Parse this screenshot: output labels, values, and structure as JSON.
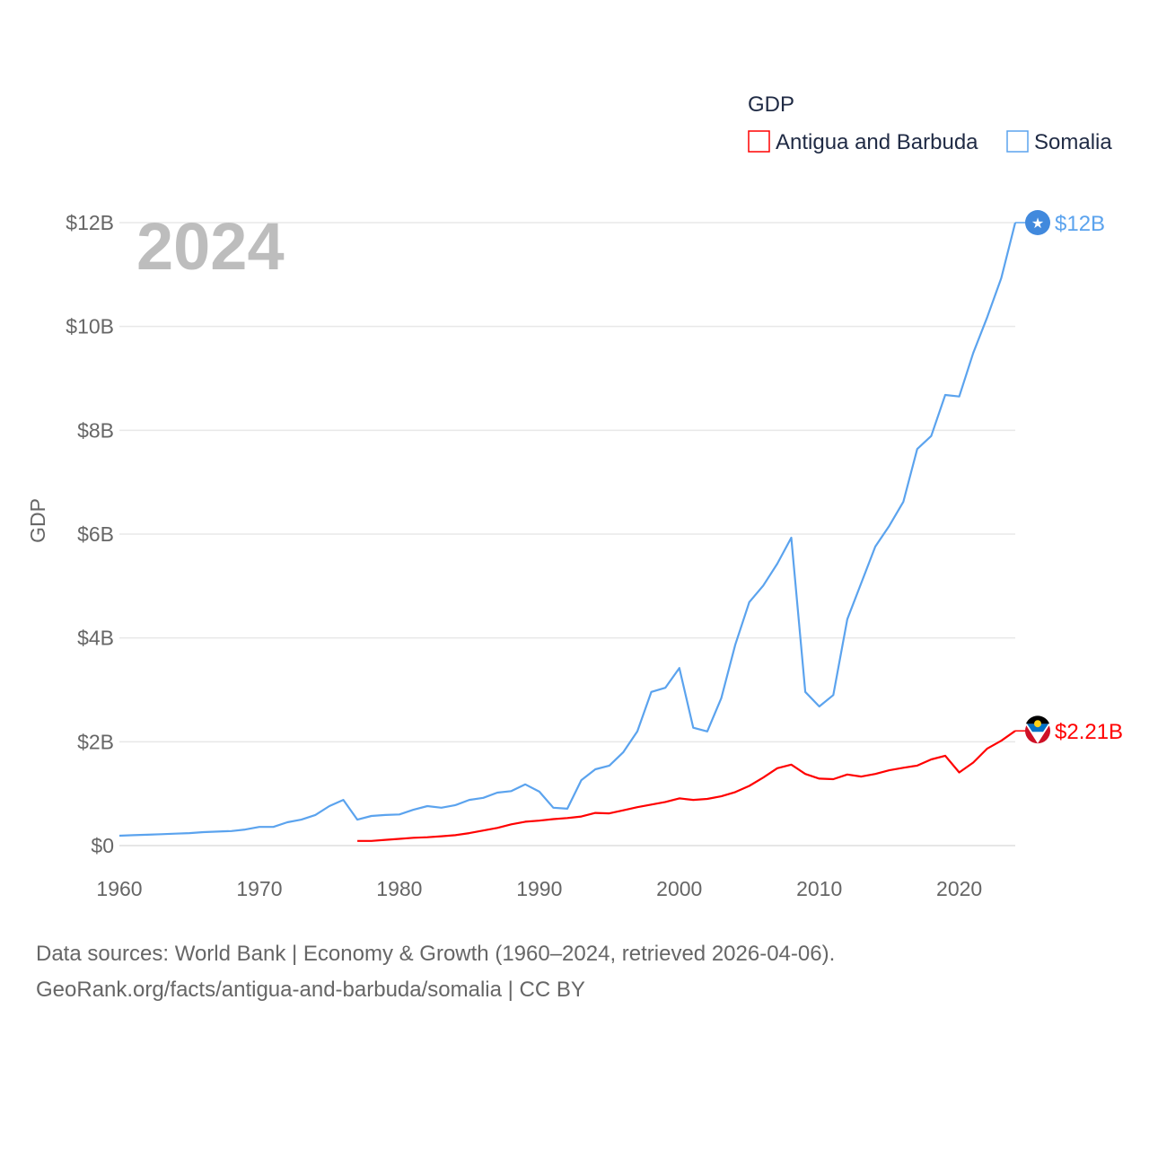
{
  "chart_data": {
    "type": "line",
    "title": "GDP",
    "year_label": "2024",
    "ylabel": "GDP",
    "xlabel": "",
    "xlim": [
      1960,
      2024
    ],
    "ylim": [
      0,
      12
    ],
    "y_unit": "billion USD",
    "x_ticks": [
      "1960",
      "1970",
      "1980",
      "1990",
      "2000",
      "2010",
      "2020"
    ],
    "y_ticks": [
      {
        "value": 0,
        "label": "$0"
      },
      {
        "value": 2,
        "label": "$2B"
      },
      {
        "value": 4,
        "label": "$4B"
      },
      {
        "value": 6,
        "label": "$6B"
      },
      {
        "value": 8,
        "label": "$8B"
      },
      {
        "value": 10,
        "label": "$10B"
      },
      {
        "value": 12,
        "label": "$12B"
      }
    ],
    "grid": true,
    "legend_position": "top-right",
    "series": [
      {
        "name": "Antigua and Barbuda",
        "color": "#ff0000",
        "end_label": "$2.21B",
        "start_year": 1977,
        "values": [
          0.09,
          0.09,
          0.11,
          0.13,
          0.15,
          0.16,
          0.18,
          0.2,
          0.24,
          0.29,
          0.34,
          0.41,
          0.46,
          0.48,
          0.51,
          0.53,
          0.56,
          0.63,
          0.62,
          0.68,
          0.74,
          0.79,
          0.84,
          0.91,
          0.88,
          0.9,
          0.95,
          1.03,
          1.15,
          1.31,
          1.49,
          1.56,
          1.38,
          1.29,
          1.28,
          1.37,
          1.33,
          1.38,
          1.45,
          1.5,
          1.54,
          1.66,
          1.73,
          1.41,
          1.6,
          1.87,
          2.02,
          2.21
        ]
      },
      {
        "name": "Somalia",
        "color": "#5ba3ee",
        "end_label": "$12B",
        "start_year": 1960,
        "values": [
          0.19,
          0.2,
          0.21,
          0.22,
          0.23,
          0.24,
          0.26,
          0.27,
          0.28,
          0.31,
          0.36,
          0.36,
          0.45,
          0.5,
          0.59,
          0.76,
          0.88,
          0.5,
          0.57,
          0.59,
          0.6,
          0.69,
          0.76,
          0.73,
          0.78,
          0.88,
          0.92,
          1.02,
          1.05,
          1.18,
          1.04,
          0.73,
          0.71,
          1.26,
          1.47,
          1.54,
          1.8,
          2.2,
          2.96,
          3.04,
          3.42,
          2.27,
          2.2,
          2.84,
          3.87,
          4.69,
          5.01,
          5.43,
          5.93,
          2.96,
          2.68,
          2.9,
          4.36,
          5.06,
          5.76,
          6.16,
          6.62,
          7.64,
          7.89,
          8.68,
          8.65,
          9.49,
          10.18,
          10.93,
          12.0
        ]
      }
    ]
  },
  "footer": {
    "line1": "Data sources: World Bank | Economy & Growth (1960–2024, retrieved 2026-04-06).",
    "line2": "GeoRank.org/facts/antigua-and-barbuda/somalia | CC BY"
  }
}
